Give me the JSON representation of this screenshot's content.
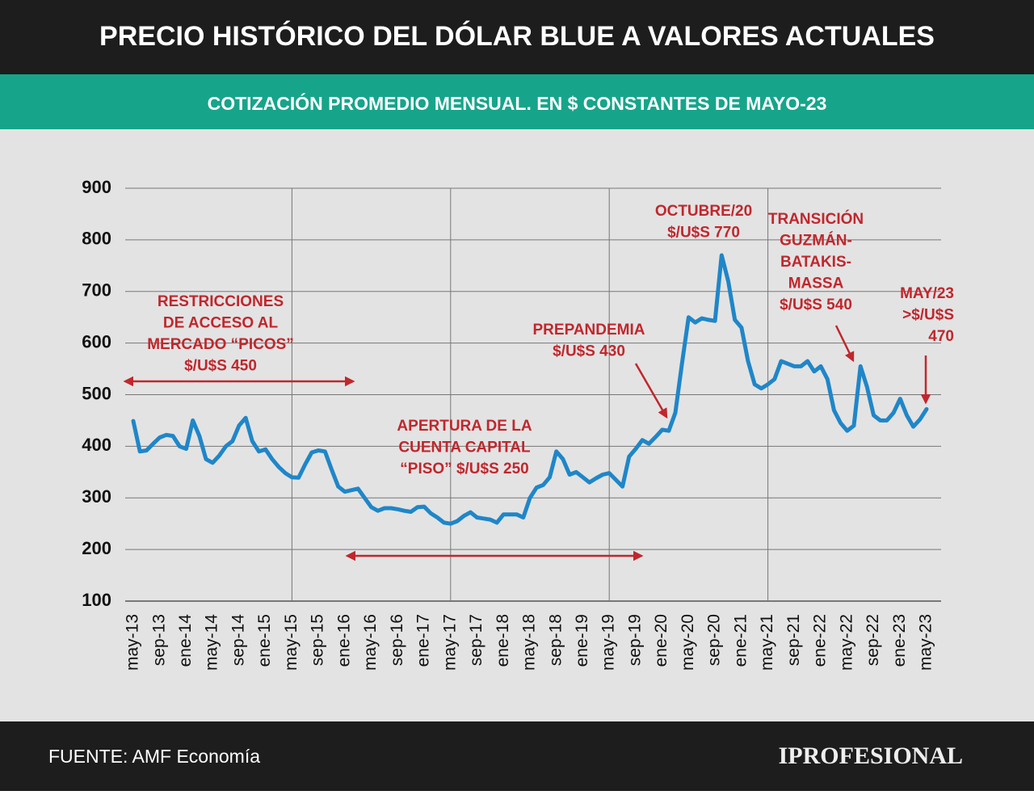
{
  "chart_data": {
    "type": "line",
    "title": "PRECIO HISTÓRICO DEL DÓLAR BLUE A VALORES ACTUALES",
    "subtitle": "COTIZACIÓN PROMEDIO MENSUAL. EN $ CONSTANTES DE MAYO-23",
    "source": "FUENTE: AMF Economía",
    "brand": "IPROFESIONAL",
    "categories": [
      "may-13",
      null,
      null,
      null,
      "sep-13",
      null,
      null,
      null,
      "ene-14",
      null,
      null,
      null,
      "may-14",
      null,
      null,
      null,
      "sep-14",
      null,
      null,
      null,
      "ene-15",
      null,
      null,
      null,
      "may-15",
      null,
      null,
      null,
      "sep-15",
      null,
      null,
      null,
      "ene-16",
      null,
      null,
      null,
      "may-16",
      null,
      null,
      null,
      "sep-16",
      null,
      null,
      null,
      "ene-17",
      null,
      null,
      null,
      "may-17",
      null,
      null,
      null,
      "sep-17",
      null,
      null,
      null,
      "ene-18",
      null,
      null,
      null,
      "may-18",
      null,
      null,
      null,
      "sep-18",
      null,
      null,
      null,
      "ene-19",
      null,
      null,
      null,
      "may-19",
      null,
      null,
      null,
      "sep-19",
      null,
      null,
      null,
      "ene-20",
      null,
      null,
      null,
      "may-20",
      null,
      null,
      null,
      "sep-20",
      null,
      null,
      null,
      "ene-21",
      null,
      null,
      null,
      "may-21",
      null,
      null,
      null,
      "sep-21",
      null,
      null,
      null,
      "ene-22",
      null,
      null,
      null,
      "may-22",
      null,
      null,
      null,
      "sep-22",
      null,
      null,
      null,
      "ene-23",
      null,
      null,
      null,
      "may-23"
    ],
    "values": [
      449,
      390,
      392,
      405,
      417,
      422,
      420,
      400,
      395,
      450,
      420,
      375,
      368,
      382,
      400,
      410,
      440,
      455,
      410,
      390,
      394,
      375,
      360,
      348,
      340,
      339,
      365,
      388,
      392,
      390,
      355,
      322,
      312,
      315,
      318,
      300,
      282,
      275,
      280,
      280,
      278,
      275,
      273,
      282,
      283,
      270,
      262,
      252,
      250,
      255,
      265,
      272,
      262,
      260,
      258,
      252,
      268,
      268,
      268,
      262,
      300,
      320,
      325,
      340,
      390,
      375,
      345,
      350,
      340,
      330,
      338,
      345,
      348,
      335,
      322,
      380,
      395,
      412,
      405,
      418,
      432,
      430,
      465,
      560,
      650,
      640,
      648,
      645,
      643,
      770,
      720,
      645,
      630,
      565,
      520,
      512,
      520,
      530,
      565,
      560,
      555,
      555,
      565,
      545,
      555,
      530,
      470,
      445,
      430,
      440,
      555,
      515,
      460,
      450,
      450,
      465,
      492,
      460,
      438,
      452,
      472
    ],
    "color": "#1f86c8",
    "ylim": [
      100,
      900
    ],
    "yticks": [
      100,
      200,
      300,
      400,
      500,
      600,
      700,
      800,
      900
    ],
    "grid": true,
    "annotations": [
      {
        "lines": [
          "RESTRICCIONES",
          "DE ACCESO AL",
          "MERCADO “PICOS”",
          "$/U$S 450"
        ]
      },
      {
        "lines": [
          "APERTURA DE LA",
          "CUENTA CAPITAL",
          "“PISO” $/U$S 250"
        ]
      },
      {
        "lines": [
          "PREPANDEMIA",
          "$/U$S 430"
        ]
      },
      {
        "lines": [
          "OCTUBRE/20",
          "$/U$S 770"
        ]
      },
      {
        "lines": [
          "TRANSICIÓN",
          "GUZMÁN-",
          "BATAKIS-",
          "MASSA",
          "$/U$S 540"
        ]
      },
      {
        "lines": [
          "MAY/23",
          ">$/U$S",
          "470"
        ]
      }
    ]
  }
}
